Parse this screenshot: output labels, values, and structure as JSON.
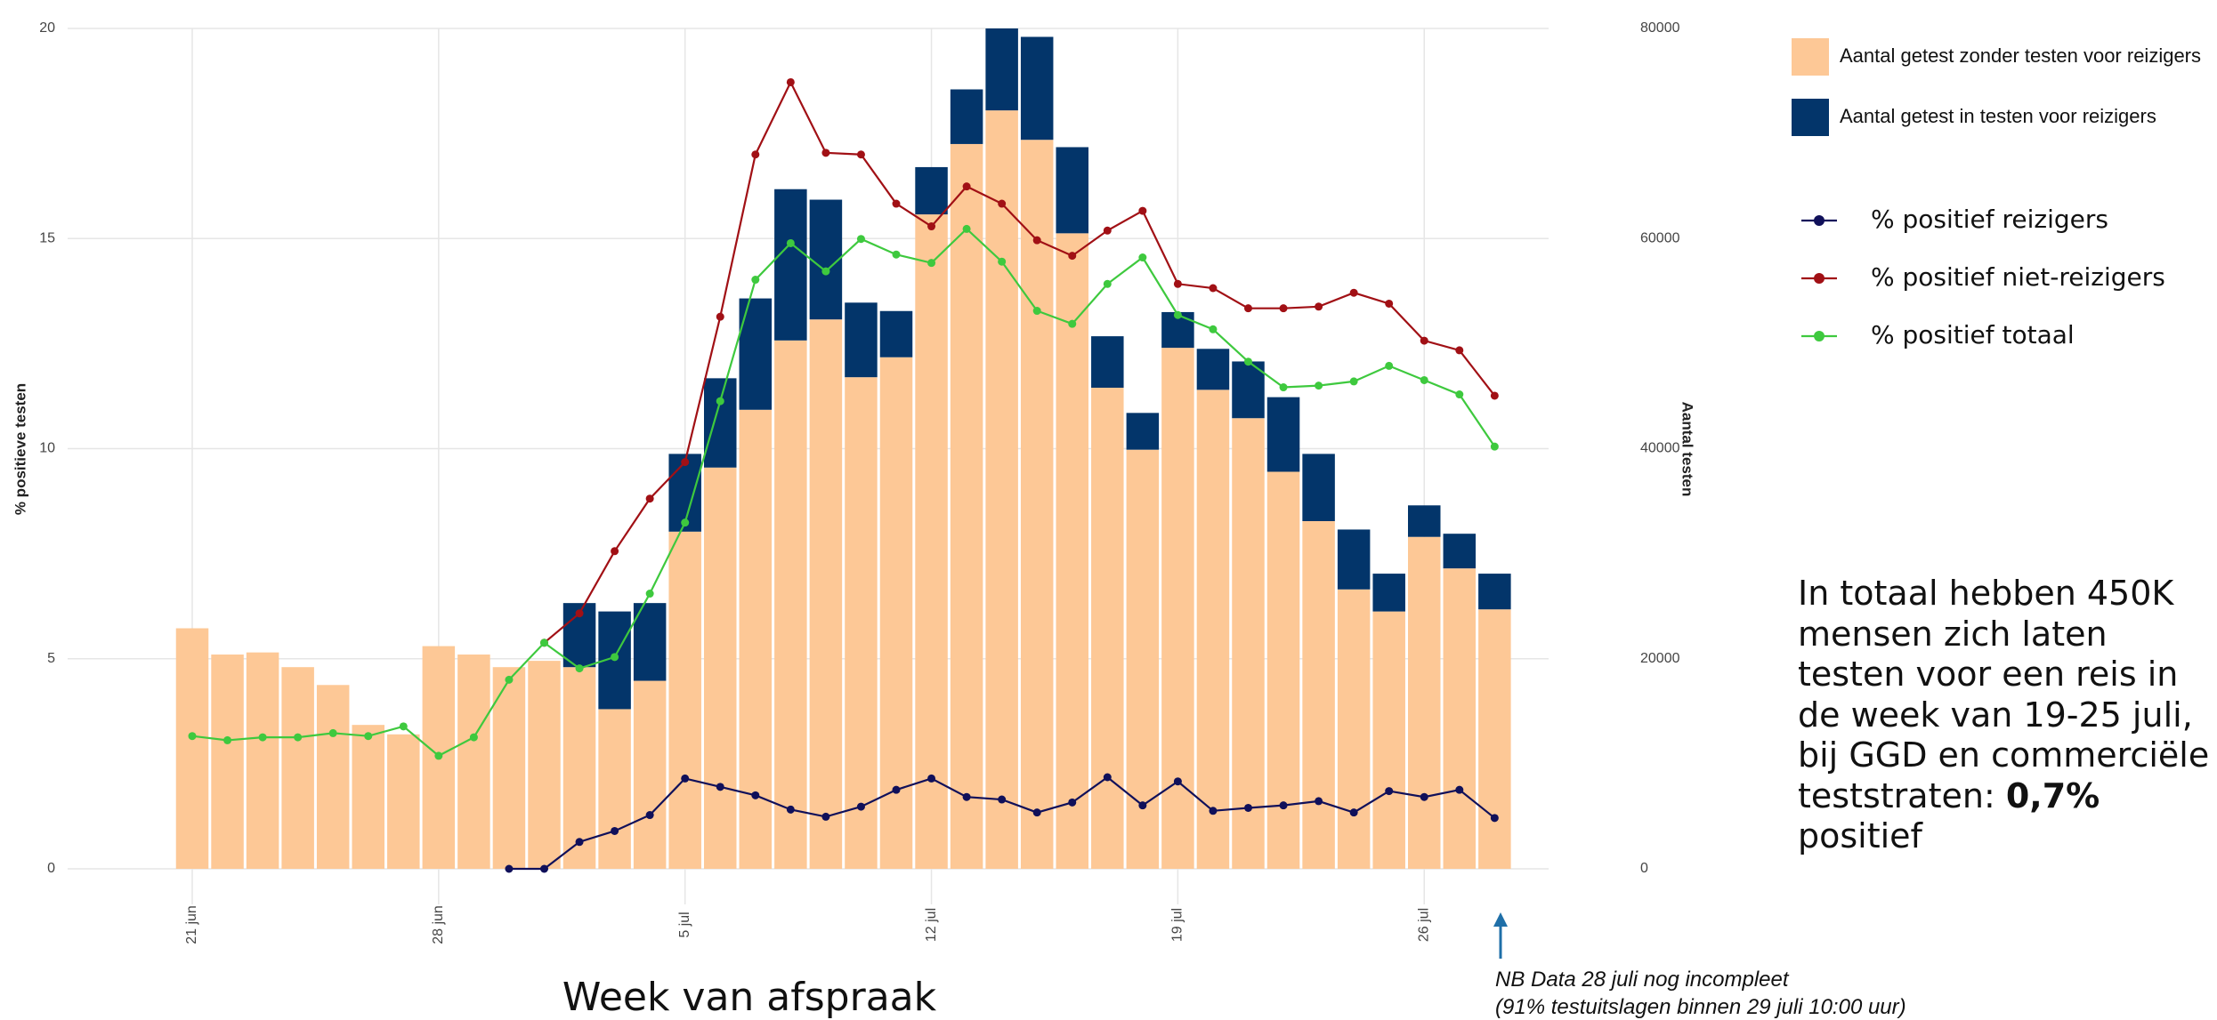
{
  "chart_data": {
    "type": "combo",
    "ylabel": "% positieve testen",
    "y2label": "Aantal testen",
    "xlabel": "Week van afspraak",
    "categories": [
      "21 jun",
      null,
      null,
      null,
      null,
      null,
      null,
      "28 jun",
      null,
      null,
      null,
      null,
      null,
      null,
      "5 jul",
      null,
      null,
      null,
      null,
      null,
      null,
      "12 jul",
      null,
      null,
      null,
      null,
      null,
      null,
      "19 jul",
      null,
      null,
      null,
      null,
      null,
      null,
      "26 jul",
      null,
      null
    ],
    "ylim": [
      0,
      20
    ],
    "yticks": [
      0,
      5,
      10,
      15,
      20
    ],
    "y2lim": [
      0,
      80000
    ],
    "y2ticks": [
      0,
      20000,
      40000,
      60000,
      80000
    ],
    "grid": true,
    "legend": "right",
    "series": [
      {
        "name": "Aantal getest zonder testen voor reizigers",
        "type": "bar",
        "axis": "y2",
        "color": "#fdc896",
        "values": [
          22900,
          20400,
          20600,
          19200,
          17500,
          13700,
          12800,
          21200,
          20400,
          19200,
          19800,
          19200,
          15200,
          17900,
          32100,
          38200,
          43700,
          50300,
          52300,
          46800,
          48700,
          62300,
          69000,
          72200,
          69400,
          60500,
          45800,
          39900,
          49600,
          45600,
          42900,
          37800,
          33100,
          26600,
          24500,
          31600,
          28600,
          24700
        ]
      },
      {
        "name": "Aantal getest in testen voor reizigers",
        "type": "bar",
        "axis": "y2",
        "color": "#03356a",
        "values": [
          null,
          null,
          null,
          null,
          null,
          null,
          null,
          null,
          null,
          null,
          null,
          6100,
          9300,
          7400,
          7400,
          8500,
          10600,
          14400,
          11400,
          7100,
          4400,
          4500,
          5200,
          7800,
          9800,
          8200,
          4900,
          3500,
          3400,
          3900,
          5400,
          7100,
          6400,
          5700,
          3600,
          3000,
          3300,
          3400
        ]
      },
      {
        "name": "% positief reizigers",
        "type": "line",
        "color": "#10105a",
        "values": [
          null,
          null,
          null,
          null,
          null,
          null,
          null,
          null,
          null,
          0,
          0,
          0.64,
          0.9,
          1.28,
          2.15,
          1.95,
          1.75,
          1.41,
          1.24,
          1.48,
          1.88,
          2.15,
          1.71,
          1.65,
          1.34,
          1.58,
          2.18,
          1.51,
          2.08,
          1.38,
          1.45,
          1.51,
          1.61,
          1.34,
          1.85,
          1.71,
          1.88,
          1.21
        ]
      },
      {
        "name": "% positief niet-reizigers",
        "type": "line",
        "color": "#a11015",
        "values": [
          null,
          null,
          null,
          null,
          null,
          null,
          null,
          null,
          null,
          null,
          5.38,
          6.08,
          7.56,
          8.81,
          9.68,
          13.14,
          17.0,
          18.72,
          17.04,
          17.0,
          15.83,
          15.29,
          16.24,
          15.83,
          14.96,
          14.59,
          15.19,
          15.66,
          13.92,
          13.82,
          13.34,
          13.34,
          13.38,
          13.71,
          13.45,
          12.57,
          12.34,
          11.26
        ]
      },
      {
        "name": "% positief totaal",
        "type": "line",
        "color": "#3ec93e",
        "values": [
          3.16,
          3.06,
          3.13,
          3.13,
          3.23,
          3.16,
          3.39,
          2.69,
          3.13,
          4.5,
          5.38,
          4.77,
          5.04,
          6.55,
          8.24,
          11.13,
          14.02,
          14.89,
          14.22,
          14.99,
          14.62,
          14.42,
          15.23,
          14.45,
          13.28,
          12.97,
          13.92,
          14.55,
          13.18,
          12.84,
          12.07,
          11.46,
          11.5,
          11.6,
          11.97,
          11.63,
          11.29,
          10.05
        ]
      }
    ],
    "annotation": {
      "text": "In totaal hebben 450K mensen zich laten testen voor een reis in de week van 19-25 juli, bij GGD en commerciële teststraten:",
      "highlight": "0,7%",
      "suffix": "positief"
    },
    "note": [
      "NB Data 28 juli nog incompleet",
      "(91% testuitslagen binnen 29 juli 10:00 uur)"
    ]
  }
}
